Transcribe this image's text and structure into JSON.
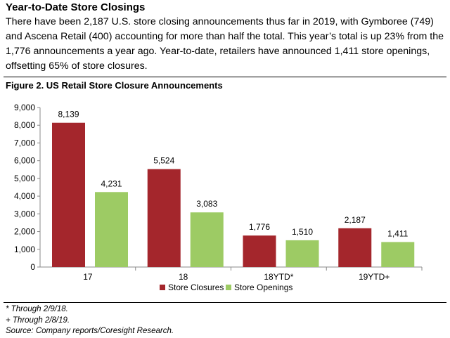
{
  "header": {
    "title": "Year-to-Date Store Closings",
    "intro": "There have been 2,187 U.S. store closing announcements thus far in 2019, with Gymboree (749) and Ascena Retail (400) accounting for more than half the total. This year’s total is up 23% from the 1,776 announcements a year ago. Year-to-date, retailers have announced 1,411 store openings, offsetting 65% of store closures."
  },
  "figure": {
    "title": "Figure 2. US Retail Store Closure Announcements"
  },
  "chart_data": {
    "type": "bar",
    "categories": [
      "17",
      "18",
      "18YTD*",
      "19YTD+"
    ],
    "series": [
      {
        "name": "Store Closures",
        "values": [
          8139,
          5524,
          1776,
          2187
        ],
        "color": "#A4262C"
      },
      {
        "name": "Store Openings",
        "values": [
          4231,
          3083,
          1510,
          1411
        ],
        "color": "#9DCB64"
      }
    ],
    "data_labels": [
      [
        "8,139",
        "5,524",
        "1,776",
        "2,187"
      ],
      [
        "4,231",
        "3,083",
        "1,510",
        "1,411"
      ]
    ],
    "y_ticks": [
      "0",
      "1,000",
      "2,000",
      "3,000",
      "4,000",
      "5,000",
      "6,000",
      "7,000",
      "8,000",
      "9,000"
    ],
    "ylim": [
      0,
      9000
    ],
    "grid": false,
    "legend_position": "bottom"
  },
  "footnotes": [
    "* Through 2/9/18.",
    "+ Through 2/8/19.",
    "Source: Company reports/Coresight Research."
  ]
}
